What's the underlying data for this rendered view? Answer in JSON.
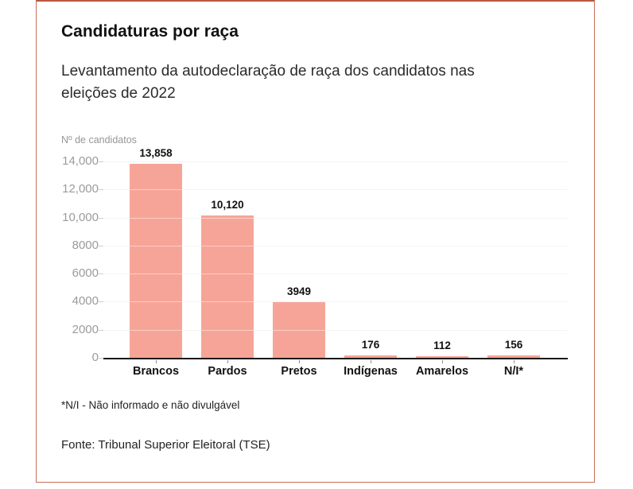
{
  "card": {
    "accent_color": "#bb5740",
    "border_color": "#ca6e58",
    "background": "#ffffff"
  },
  "chart_data": {
    "type": "bar",
    "title": "Candidaturas por raça",
    "subtitle": "Levantamento da autodeclaração de raça dos candidatos nas eleições de 2022",
    "subtitle_lines": [
      "Levantamento da autodeclaração de raça dos candidatos nas",
      "eleições de 2022"
    ],
    "ylabel": "Nº de candidatos",
    "xlabel": "",
    "categories": [
      "Brancos",
      "Pardos",
      "Pretos",
      "Indígenas",
      "Amarelos",
      "N/I*"
    ],
    "values": [
      13858,
      10120,
      3949,
      176,
      112,
      156
    ],
    "value_labels": [
      "13,858",
      "10,120",
      "3949",
      "176",
      "112",
      "156"
    ],
    "y_ticks": [
      {
        "value": 0,
        "label": "0"
      },
      {
        "value": 2000,
        "label": "2000"
      },
      {
        "value": 4000,
        "label": "4000"
      },
      {
        "value": 6000,
        "label": "6000"
      },
      {
        "value": 8000,
        "label": "8000"
      },
      {
        "value": 10000,
        "label": "10,000"
      },
      {
        "value": 12000,
        "label": "12,000"
      },
      {
        "value": 14000,
        "label": "14,000"
      }
    ],
    "ylim": [
      0,
      14000
    ],
    "grid": true,
    "legend": false,
    "bar_color": "#f7a498",
    "axis_color": "#1a1a1a",
    "gridline_color": "#e9e9e9",
    "tick_label_color": "#9b9b9b"
  },
  "footnote": "*N/I - Não informado e não divulgável",
  "source": "Fonte: Tribunal Superior Eleitoral (TSE)"
}
